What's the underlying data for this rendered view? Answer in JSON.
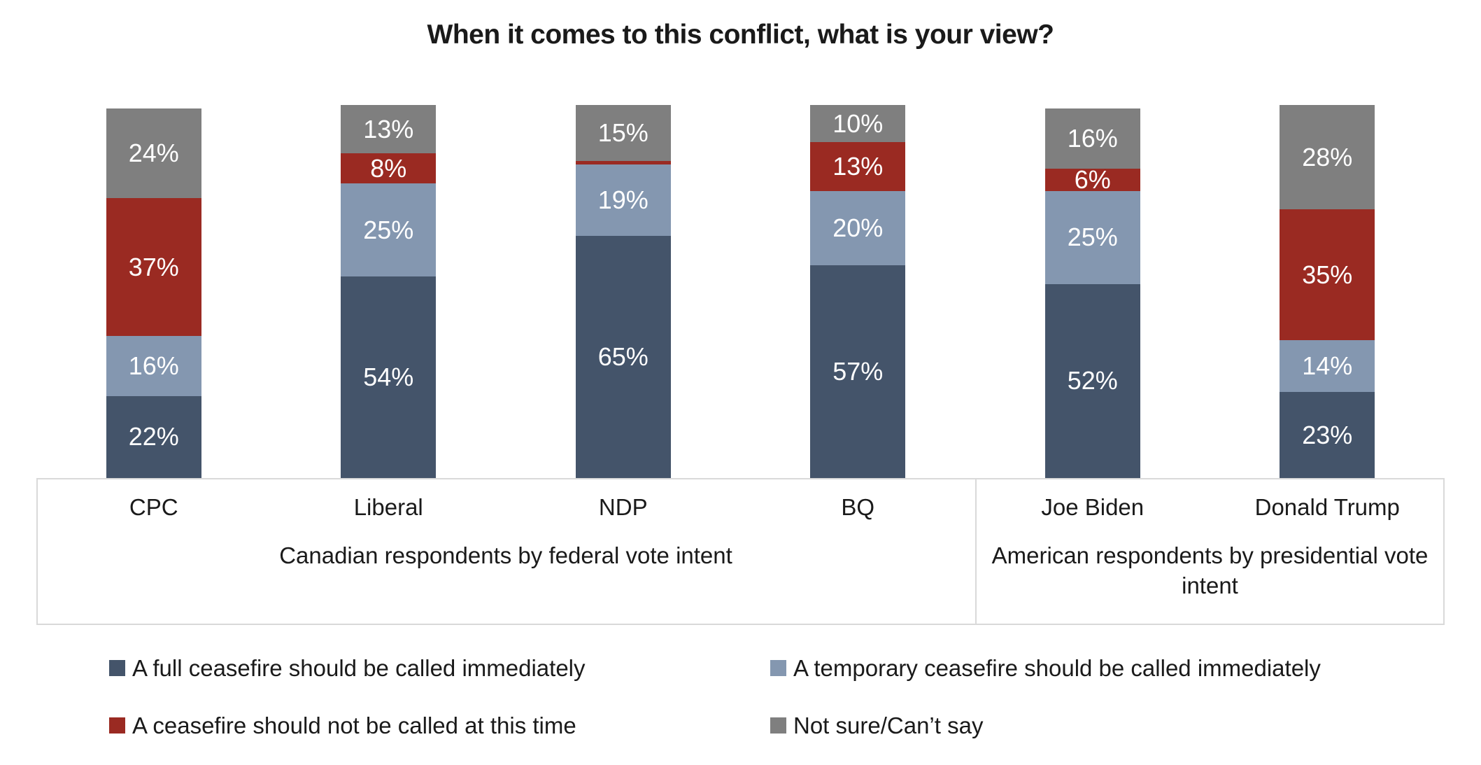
{
  "title": "When it comes to this conflict, what is your view?",
  "chart_data": {
    "type": "bar",
    "subtype": "stacked-100-percent-column",
    "unit": "percent",
    "title": "When it comes to this conflict, what is your view?",
    "categories": [
      "CPC",
      "Liberal",
      "NDP",
      "BQ",
      "Joe Biden",
      "Donald Trump"
    ],
    "category_groups": [
      {
        "label": "Canadian respondents by federal vote intent",
        "span_start": 0,
        "span_end": 3
      },
      {
        "label": "American respondents by presidential vote intent",
        "span_start": 4,
        "span_end": 5
      }
    ],
    "series": [
      {
        "name": "A full ceasefire should be called immediately",
        "color": "#44546A",
        "values": [
          22,
          54,
          65,
          57,
          52,
          23
        ]
      },
      {
        "name": "A temporary ceasefire should be called immediately",
        "color": "#8497B0",
        "values": [
          16,
          25,
          19,
          20,
          25,
          14
        ]
      },
      {
        "name": "A ceasefire should not be called at this time",
        "color": "#9A2A22",
        "values": [
          37,
          8,
          1,
          13,
          6,
          35
        ]
      },
      {
        "name": "Not sure/Can’t say",
        "color": "#7F7F7F",
        "values": [
          24,
          13,
          15,
          10,
          16,
          28
        ]
      }
    ],
    "data_label_format": "{value}%",
    "data_label_min_value_shown": 2,
    "data_label_color": "#FFFFFF",
    "ylim": [
      0,
      100
    ],
    "grid": false,
    "y_axis_shown": false,
    "legend_position": "bottom"
  },
  "legend": {
    "items": [
      {
        "label": "A full ceasefire should be called immediately",
        "color": "#44546A"
      },
      {
        "label": "A temporary ceasefire should be called immediately",
        "color": "#8497B0"
      },
      {
        "label": "A ceasefire should not be called at this time",
        "color": "#9A2A22"
      },
      {
        "label": "Not sure/Can’t say",
        "color": "#7F7F7F"
      }
    ]
  },
  "colors": {
    "background": "#FFFFFF",
    "axis_border": "#D9D9D9",
    "data_label_text": "#FFFFFF",
    "text": "#1A1A1A"
  }
}
